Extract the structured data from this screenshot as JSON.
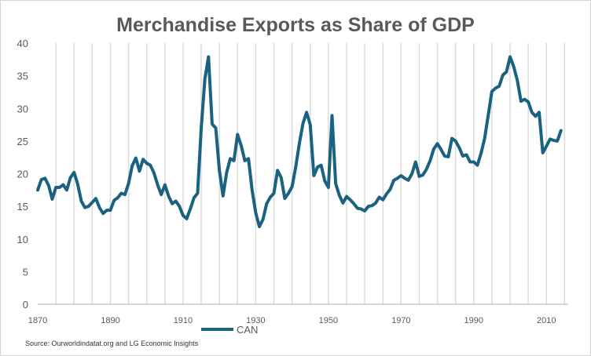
{
  "colors": {
    "series": "#1a6280",
    "grid": "#d9d9d9",
    "text": "#595959"
  },
  "source": "Source: Ourworldindatat.org  and LG Economic Insights",
  "chart_data": {
    "type": "line",
    "title": "Merchandise Exports as Share of GDP",
    "xlabel": "",
    "ylabel": "",
    "xlim": [
      1870,
      2016
    ],
    "ylim": [
      0,
      40
    ],
    "yticks": [
      0,
      5,
      10,
      15,
      20,
      25,
      30,
      35,
      40
    ],
    "xticks": [
      1870,
      1890,
      1910,
      1930,
      1950,
      1970,
      1990,
      2010
    ],
    "grid": "vertical",
    "legend": "bottom",
    "series": [
      {
        "name": "CAN",
        "x": [
          1870,
          1871,
          1872,
          1873,
          1874,
          1875,
          1876,
          1877,
          1878,
          1879,
          1880,
          1881,
          1882,
          1883,
          1884,
          1885,
          1886,
          1887,
          1888,
          1889,
          1890,
          1891,
          1892,
          1893,
          1894,
          1895,
          1896,
          1897,
          1898,
          1899,
          1900,
          1901,
          1902,
          1903,
          1904,
          1905,
          1906,
          1907,
          1908,
          1909,
          1910,
          1911,
          1912,
          1913,
          1914,
          1915,
          1916,
          1917,
          1918,
          1919,
          1920,
          1921,
          1922,
          1923,
          1924,
          1925,
          1926,
          1927,
          1928,
          1929,
          1930,
          1931,
          1932,
          1933,
          1934,
          1935,
          1936,
          1937,
          1938,
          1939,
          1940,
          1941,
          1942,
          1943,
          1944,
          1945,
          1946,
          1947,
          1948,
          1949,
          1950,
          1951,
          1952,
          1953,
          1954,
          1955,
          1956,
          1957,
          1958,
          1959,
          1960,
          1961,
          1962,
          1963,
          1964,
          1965,
          1966,
          1967,
          1968,
          1969,
          1970,
          1971,
          1972,
          1973,
          1974,
          1975,
          1976,
          1977,
          1978,
          1979,
          1980,
          1981,
          1982,
          1983,
          1984,
          1985,
          1986,
          1987,
          1988,
          1989,
          1990,
          1991,
          1992,
          1993,
          1994,
          1995,
          1996,
          1997,
          1998,
          1999,
          2000,
          2001,
          2002,
          2003,
          2004,
          2005,
          2006,
          2007,
          2008,
          2009,
          2010,
          2011,
          2012,
          2013,
          2014
        ],
        "values": [
          17.5,
          19.1,
          19.3,
          18.2,
          16.1,
          17.9,
          17.9,
          18.3,
          17.5,
          19.4,
          20.2,
          18.4,
          15.8,
          14.8,
          15.0,
          15.6,
          16.2,
          14.8,
          13.9,
          14.4,
          14.4,
          15.9,
          16.3,
          17.0,
          16.8,
          18.5,
          21.2,
          22.4,
          20.4,
          22.2,
          21.6,
          21.3,
          20.1,
          18.3,
          16.8,
          18.3,
          16.6,
          15.4,
          15.8,
          15.0,
          13.6,
          13.1,
          14.6,
          16.3,
          17.0,
          27.0,
          34.5,
          37.9,
          27.6,
          27.0,
          20.5,
          16.6,
          20.2,
          22.3,
          22.0,
          26.0,
          24.3,
          22.0,
          22.3,
          17.5,
          14.0,
          11.9,
          13.0,
          15.4,
          16.4,
          17.0,
          20.5,
          19.4,
          16.2,
          17.0,
          18.0,
          21.0,
          24.6,
          27.7,
          29.4,
          27.5,
          19.7,
          21.0,
          21.3,
          18.9,
          17.9,
          28.9,
          18.5,
          16.7,
          15.5,
          16.5,
          16.0,
          15.4,
          14.7,
          14.6,
          14.3,
          15.0,
          15.1,
          15.5,
          16.4,
          16.0,
          16.9,
          17.6,
          19.0,
          19.3,
          19.7,
          19.3,
          19.0,
          20.0,
          21.8,
          19.6,
          19.8,
          20.7,
          22.0,
          23.8,
          24.6,
          23.7,
          22.7,
          22.6,
          25.4,
          25.0,
          24.0,
          22.7,
          22.9,
          21.8,
          21.8,
          21.3,
          23.1,
          25.4,
          29.0,
          32.6,
          33.1,
          33.4,
          35.1,
          35.6,
          37.9,
          36.4,
          34.3,
          31.1,
          31.4,
          31.0,
          29.4,
          28.8,
          29.4,
          23.2,
          24.2,
          25.3,
          25.1,
          25.0,
          26.6
        ]
      }
    ]
  }
}
